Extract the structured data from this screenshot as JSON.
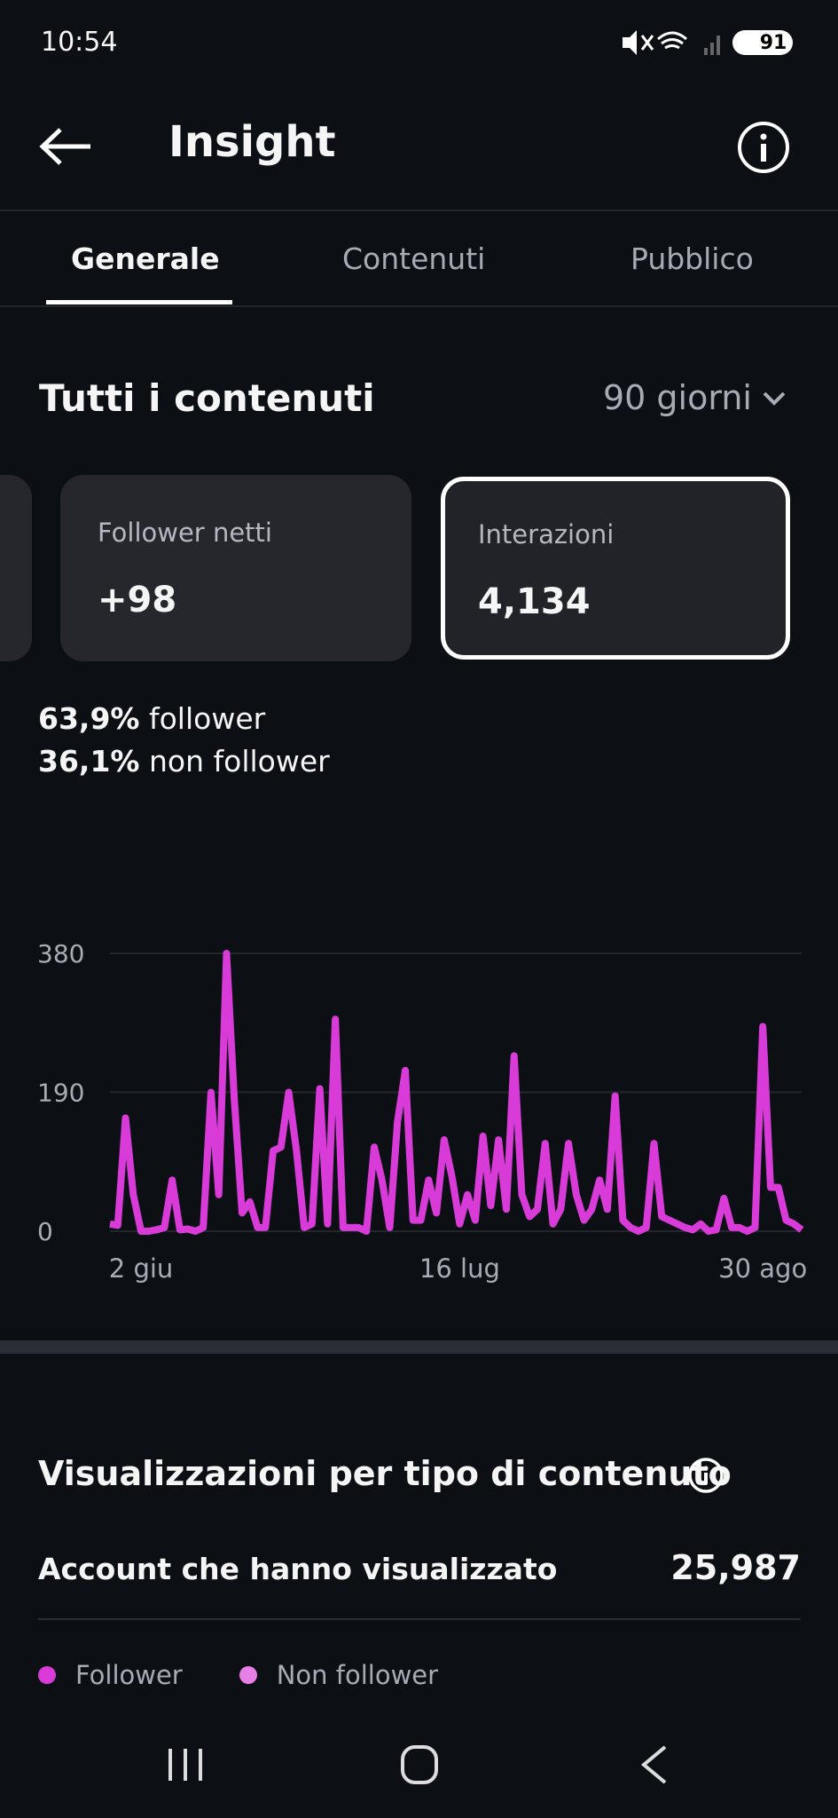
{
  "status_bar": {
    "time": "10:54",
    "battery": "91"
  },
  "header": {
    "title": "Insight",
    "tabs": [
      "Generale",
      "Contenuti",
      "Pubblico"
    ]
  },
  "section": {
    "title": "Tutti i contenuti",
    "period": "90 giorni"
  },
  "cards": [
    {
      "label": "Follower netti",
      "value": "+98"
    },
    {
      "label": "Interazioni",
      "value": "4,134"
    }
  ],
  "breakdown": [
    {
      "percent": "63,9%",
      "label": "follower"
    },
    {
      "percent": "36,1%",
      "label": "non follower"
    }
  ],
  "chart_data": {
    "type": "line",
    "categories": [
      null,
      null,
      null,
      null,
      "2 giu",
      null,
      null,
      null,
      null,
      null,
      null,
      null,
      null,
      null,
      null,
      null,
      null,
      null,
      null,
      null,
      null,
      null,
      null,
      null,
      null,
      null,
      null,
      null,
      null,
      null,
      null,
      null,
      null,
      null,
      null,
      null,
      null,
      null,
      null,
      null,
      null,
      null,
      null,
      null,
      null,
      "16 lug",
      null,
      null,
      null,
      null,
      null,
      null,
      null,
      null,
      null,
      null,
      null,
      null,
      null,
      null,
      null,
      null,
      null,
      null,
      null,
      null,
      null,
      null,
      null,
      null,
      null,
      null,
      null,
      null,
      null,
      null,
      null,
      null,
      null,
      null,
      null,
      null,
      null,
      null,
      "30 ago",
      null,
      null,
      null,
      null,
      null
    ],
    "series": [
      {
        "color": "#d93bd9",
        "values": [
          10,
          8,
          155,
          50,
          0,
          0,
          2,
          5,
          70,
          2,
          3,
          0,
          5,
          190,
          50,
          380,
          180,
          25,
          40,
          5,
          5,
          110,
          115,
          190,
          110,
          5,
          10,
          195,
          10,
          290,
          5,
          5,
          5,
          0,
          115,
          70,
          5,
          150,
          220,
          15,
          15,
          70,
          25,
          125,
          75,
          10,
          50,
          15,
          130,
          35,
          125,
          30,
          240,
          50,
          20,
          30,
          120,
          10,
          30,
          120,
          50,
          15,
          30,
          70,
          30,
          185,
          15,
          5,
          0,
          5,
          120,
          20,
          15,
          10,
          5,
          2,
          10,
          0,
          2,
          45,
          5,
          5,
          0,
          5,
          280,
          60,
          60,
          15,
          10,
          2
        ]
      }
    ],
    "ylim": [
      0,
      380
    ],
    "yticks": [
      0,
      190,
      380
    ],
    "grid": true
  },
  "views": {
    "title": "Visualizzazioni per tipo di contenuto",
    "metric_label": "Account che hanno visualizzato",
    "metric_value": "25,987",
    "legend": [
      {
        "name": "Follower",
        "color": "#d93bd9"
      },
      {
        "name": "Non follower",
        "color": "#e77fe6"
      }
    ]
  }
}
